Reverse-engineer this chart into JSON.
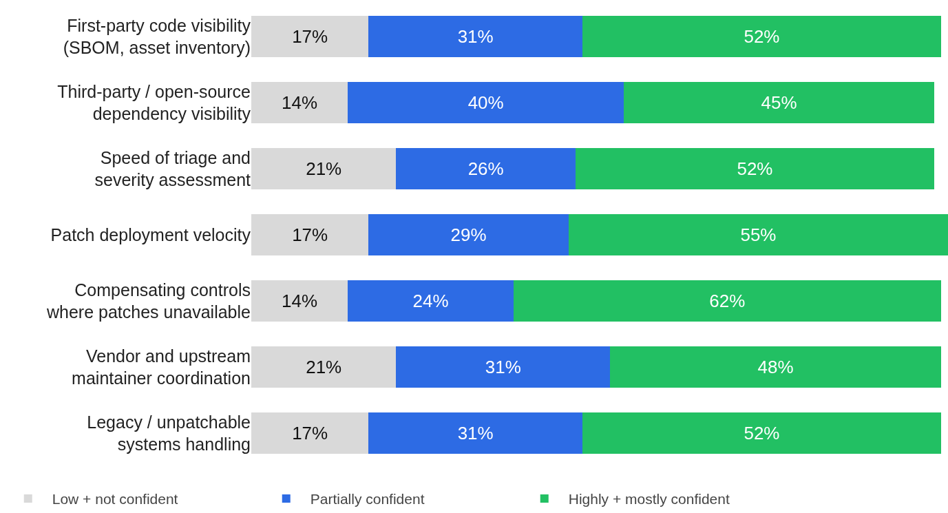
{
  "chart_data": {
    "type": "bar",
    "orientation": "horizontal",
    "stacked": true,
    "legend": "bottom left",
    "tick_labels": "y",
    "categories": [
      "First-party code visibility\n(SBOM, asset inventory)",
      "Third-party / open-source\ndependency visibility",
      "Speed of triage and\nseverity assessment",
      "Patch deployment velocity",
      "Compensating controls\nwhere patches unavailable",
      "Vendor and upstream\nmaintainer coordination",
      "Legacy / unpatchable\nsystems handling"
    ],
    "series": [
      {
        "name": "Low + not confident",
        "color": "#d9d9d9",
        "values": [
          17,
          14,
          21,
          17,
          14,
          21,
          17
        ],
        "value_labels": [
          "17%",
          "14%",
          "21%",
          "17%",
          "14%",
          "21%",
          "17%"
        ]
      },
      {
        "name": "Partially confident",
        "color": "#2d6be4",
        "values": [
          31,
          40,
          26,
          29,
          24,
          31,
          31
        ],
        "value_labels": [
          "31%",
          "40%",
          "26%",
          "29%",
          "24%",
          "31%",
          "31%"
        ]
      },
      {
        "name": "Highly + mostly confident",
        "color": "#22c063",
        "values": [
          52,
          45,
          52,
          55,
          62,
          48,
          52
        ],
        "value_labels": [
          "52%",
          "45%",
          "52%",
          "55%",
          "62%",
          "48%",
          "52%"
        ]
      }
    ]
  }
}
